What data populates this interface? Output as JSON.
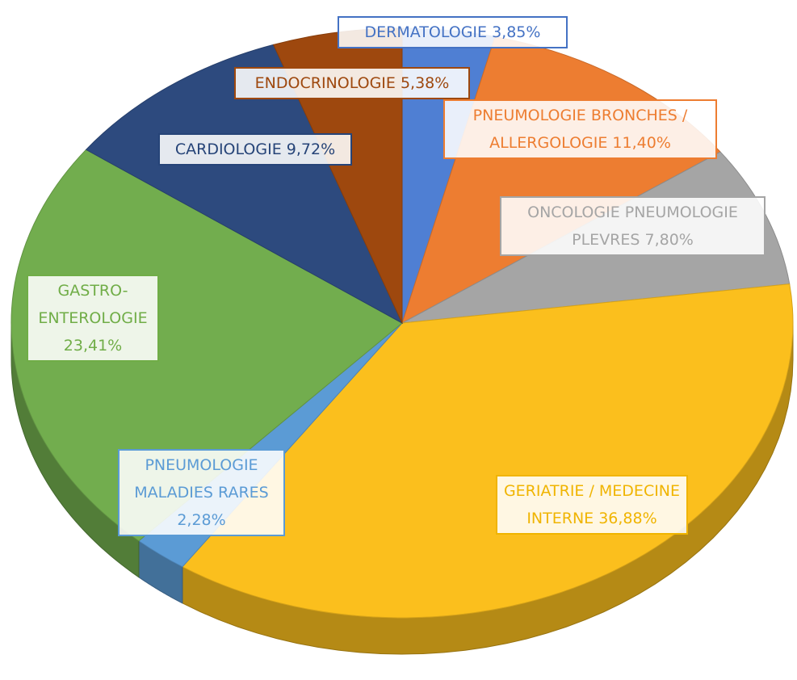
{
  "chart_data": {
    "type": "pie",
    "categories": [
      "DERMATOLOGIE",
      "PNEUMOLOGIE BRONCHES / ALLERGOLOGIE",
      "ONCOLOGIE PNEUMOLOGIE PLEVRES",
      "GERIATRIE / MEDECINE INTERNE",
      "PNEUMOLOGIE MALADIES RARES",
      "GASTRO-ENTEROLOGIE",
      "CARDIOLOGIE",
      "ENDOCRINOLOGIE"
    ],
    "values": [
      3.85,
      11.4,
      7.8,
      36.88,
      2.28,
      23.41,
      9.72,
      5.38
    ],
    "value_labels": [
      "3,85%",
      "11,40%",
      "7,80%",
      "36,88%",
      "2,28%",
      "23,41%",
      "9,72%",
      "5,38%"
    ],
    "colors": [
      "#4f7fd3",
      "#ed7d31",
      "#a5a5a5",
      "#fbbf1d",
      "#5b9bd5",
      "#72ad4e",
      "#2d4a7e",
      "#9e480e"
    ],
    "label_colors": [
      "#4472c4",
      "#ed7d31",
      "#a5a5a5",
      "#f0b400",
      "#5b9bd5",
      "#70ad47",
      "#264478",
      "#9e480e"
    ]
  }
}
